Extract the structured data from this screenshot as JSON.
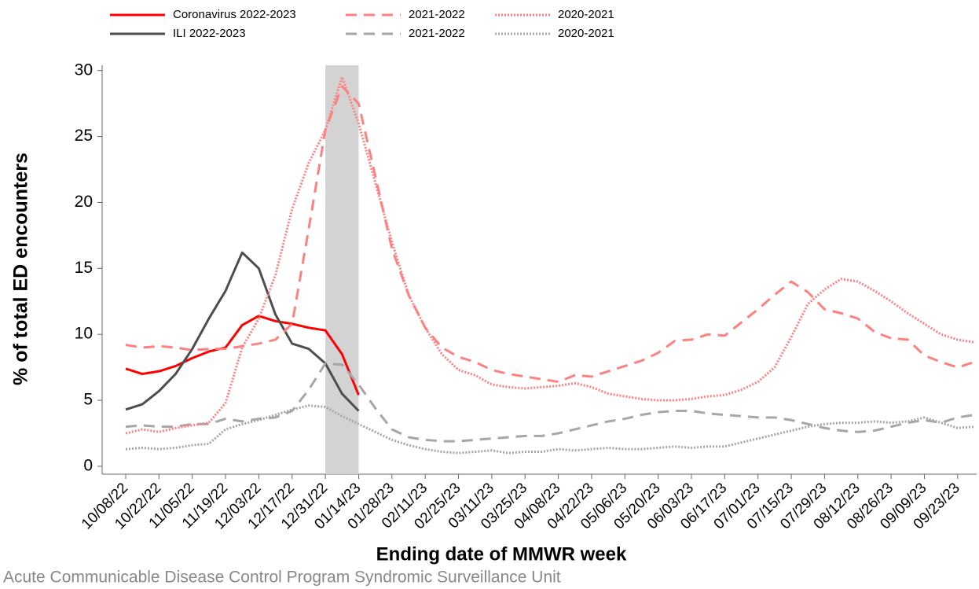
{
  "chart_data": {
    "type": "line",
    "y_label": "% of total ED encounters",
    "x_label": "Ending date of MMWR week",
    "footnote": "Acute Communicable Disease Control Program Syndromic Surveillance Unit",
    "categories": [
      "10/08/22",
      null,
      "10/22/22",
      null,
      "11/05/22",
      null,
      "11/19/22",
      null,
      "12/03/22",
      null,
      "12/17/22",
      null,
      "12/31/22",
      null,
      "01/14/23",
      null,
      "01/28/23",
      null,
      "02/11/23",
      null,
      "02/25/23",
      null,
      "03/11/23",
      null,
      "03/25/23",
      null,
      "04/08/23",
      null,
      "04/22/23",
      null,
      "05/06/23",
      null,
      "05/20/23",
      null,
      "06/03/23",
      null,
      "06/17/23",
      null,
      "07/01/23",
      null,
      "07/15/23",
      null,
      "07/29/23",
      null,
      "08/12/23",
      null,
      "08/26/23",
      null,
      "09/09/23",
      null,
      "09/23/23",
      null
    ],
    "highlight": [
      12,
      14
    ],
    "highlight_color": "#d3d3d3",
    "ylim": [
      -0.6,
      30.4
    ],
    "yticks": [
      0,
      5,
      10,
      15,
      20,
      25,
      30
    ],
    "series": [
      {
        "name": "Coronavirus 2022-2023",
        "color": "#ff0000",
        "dash": "solid",
        "values": [
          7.4,
          7.0,
          7.2,
          7.6,
          8.2,
          8.7,
          9.0,
          10.7,
          11.4,
          11.0,
          10.8,
          10.5,
          10.3,
          8.5,
          5.4,
          null,
          null,
          null,
          null,
          null,
          null,
          null,
          null,
          null,
          null,
          null,
          null,
          null,
          null,
          null,
          null,
          null,
          null,
          null,
          null,
          null,
          null,
          null,
          null,
          null,
          null,
          null,
          null,
          null,
          null,
          null,
          null,
          null,
          null,
          null,
          null,
          null
        ]
      },
      {
        "name": "ILI 2022-2023",
        "color": "#4d4d4d",
        "dash": "solid",
        "values": [
          4.3,
          4.7,
          5.7,
          7.0,
          8.9,
          11.2,
          13.3,
          16.2,
          15.0,
          11.5,
          9.3,
          8.9,
          7.8,
          5.5,
          4.2,
          null,
          null,
          null,
          null,
          null,
          null,
          null,
          null,
          null,
          null,
          null,
          null,
          null,
          null,
          null,
          null,
          null,
          null,
          null,
          null,
          null,
          null,
          null,
          null,
          null,
          null,
          null,
          null,
          null,
          null,
          null,
          null,
          null,
          null,
          null,
          null,
          null
        ]
      },
      {
        "name": "2021-2022",
        "color": "#ff8080",
        "dash": "dashed",
        "values": [
          9.2,
          9.0,
          9.1,
          9.0,
          8.8,
          8.9,
          8.9,
          9.1,
          9.3,
          9.6,
          10.8,
          18.0,
          25.5,
          28.8,
          27.5,
          22.0,
          16.5,
          13.0,
          10.5,
          9.0,
          8.3,
          7.9,
          7.3,
          7.0,
          6.8,
          6.6,
          6.4,
          6.9,
          6.8,
          7.2,
          7.6,
          8.0,
          8.6,
          9.5,
          9.6,
          10.0,
          9.9,
          10.9,
          11.9,
          13.0,
          14.0,
          13.2,
          11.9,
          11.6,
          11.2,
          10.2,
          9.7,
          9.6,
          8.4,
          7.9,
          7.5,
          7.9
        ]
      },
      {
        "name": "2021-2022",
        "color": "#a6a6a6",
        "dash": "dashed",
        "values": [
          3.0,
          3.1,
          3.0,
          3.0,
          3.2,
          3.2,
          3.6,
          3.4,
          3.6,
          3.7,
          4.2,
          5.8,
          7.8,
          7.7,
          6.2,
          4.4,
          2.8,
          2.2,
          2.0,
          1.9,
          1.9,
          2.0,
          2.1,
          2.2,
          2.3,
          2.3,
          2.5,
          2.8,
          3.1,
          3.4,
          3.6,
          3.9,
          4.1,
          4.2,
          4.2,
          4.0,
          3.9,
          3.8,
          3.7,
          3.7,
          3.5,
          3.2,
          2.9,
          2.7,
          2.6,
          2.7,
          3.0,
          3.3,
          3.5,
          3.3,
          3.7,
          3.9
        ]
      },
      {
        "name": "2020-2021",
        "color": "#ff8080",
        "dash": "dotted",
        "values": [
          2.5,
          2.8,
          2.6,
          2.9,
          3.1,
          3.3,
          4.8,
          9.0,
          11.2,
          14.5,
          19.5,
          23.0,
          25.5,
          29.5,
          26.0,
          21.5,
          17.0,
          13.0,
          10.5,
          8.5,
          7.3,
          6.9,
          6.2,
          6.0,
          5.9,
          6.0,
          6.1,
          6.3,
          6.0,
          5.5,
          5.3,
          5.1,
          5.0,
          5.0,
          5.1,
          5.3,
          5.4,
          5.8,
          6.4,
          7.5,
          9.8,
          12.3,
          13.4,
          14.2,
          14.0,
          13.3,
          12.5,
          11.6,
          10.8,
          10.0,
          9.6,
          9.4
        ]
      },
      {
        "name": "2020-2021",
        "color": "#a6a6a6",
        "dash": "dotted",
        "values": [
          1.3,
          1.4,
          1.3,
          1.4,
          1.6,
          1.7,
          2.8,
          3.2,
          3.5,
          3.9,
          4.3,
          4.6,
          4.5,
          3.8,
          3.2,
          2.6,
          2.0,
          1.6,
          1.3,
          1.1,
          1.0,
          1.1,
          1.2,
          1.0,
          1.1,
          1.1,
          1.3,
          1.2,
          1.3,
          1.4,
          1.3,
          1.3,
          1.4,
          1.5,
          1.4,
          1.5,
          1.5,
          1.8,
          2.1,
          2.4,
          2.7,
          3.0,
          3.2,
          3.3,
          3.3,
          3.4,
          3.3,
          3.4,
          3.7,
          3.3,
          2.9,
          3.0
        ]
      }
    ]
  }
}
